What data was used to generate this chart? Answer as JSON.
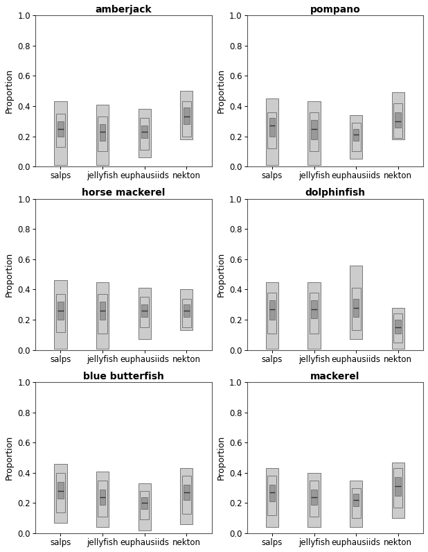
{
  "titles": [
    "amberjack",
    "pompano",
    "horse mackerel",
    "dolphinfish",
    "blue butterfish",
    "mackerel"
  ],
  "categories": [
    "salps",
    "jellyfish",
    "euphausiids",
    "nekton"
  ],
  "ylabel": "Proportion",
  "ylim": [
    0.0,
    1.0
  ],
  "yticks": [
    0.0,
    0.2,
    0.4,
    0.6,
    0.8,
    1.0
  ],
  "background_color": "#ffffff",
  "box_color_dark": "#999999",
  "box_color_light": "#cccccc",
  "title_fontweight": "bold",
  "plots": [
    {
      "title": "amberjack",
      "data": [
        {
          "median": 0.25,
          "ci50_lo": 0.2,
          "ci50_hi": 0.3,
          "ci75_lo": 0.13,
          "ci75_hi": 0.35,
          "ci95_lo": 0.01,
          "ci95_hi": 0.43
        },
        {
          "median": 0.23,
          "ci50_lo": 0.17,
          "ci50_hi": 0.28,
          "ci75_lo": 0.1,
          "ci75_hi": 0.33,
          "ci95_lo": 0.01,
          "ci95_hi": 0.41
        },
        {
          "median": 0.23,
          "ci50_lo": 0.19,
          "ci50_hi": 0.27,
          "ci75_lo": 0.11,
          "ci75_hi": 0.32,
          "ci95_lo": 0.06,
          "ci95_hi": 0.38
        },
        {
          "median": 0.33,
          "ci50_lo": 0.28,
          "ci50_hi": 0.39,
          "ci75_lo": 0.2,
          "ci75_hi": 0.43,
          "ci95_lo": 0.18,
          "ci95_hi": 0.5
        }
      ]
    },
    {
      "title": "pompano",
      "data": [
        {
          "median": 0.27,
          "ci50_lo": 0.2,
          "ci50_hi": 0.32,
          "ci75_lo": 0.12,
          "ci75_hi": 0.36,
          "ci95_lo": 0.01,
          "ci95_hi": 0.45
        },
        {
          "median": 0.25,
          "ci50_lo": 0.18,
          "ci50_hi": 0.31,
          "ci75_lo": 0.1,
          "ci75_hi": 0.36,
          "ci95_lo": 0.01,
          "ci95_hi": 0.43
        },
        {
          "median": 0.21,
          "ci50_lo": 0.17,
          "ci50_hi": 0.25,
          "ci75_lo": 0.1,
          "ci75_hi": 0.29,
          "ci95_lo": 0.05,
          "ci95_hi": 0.34
        },
        {
          "median": 0.3,
          "ci50_lo": 0.26,
          "ci50_hi": 0.36,
          "ci75_lo": 0.19,
          "ci75_hi": 0.42,
          "ci95_lo": 0.18,
          "ci95_hi": 0.49
        }
      ]
    },
    {
      "title": "horse mackerel",
      "data": [
        {
          "median": 0.26,
          "ci50_lo": 0.2,
          "ci50_hi": 0.32,
          "ci75_lo": 0.12,
          "ci75_hi": 0.37,
          "ci95_lo": 0.01,
          "ci95_hi": 0.46
        },
        {
          "median": 0.26,
          "ci50_lo": 0.2,
          "ci50_hi": 0.32,
          "ci75_lo": 0.11,
          "ci75_hi": 0.37,
          "ci95_lo": 0.01,
          "ci95_hi": 0.45
        },
        {
          "median": 0.26,
          "ci50_lo": 0.22,
          "ci50_hi": 0.3,
          "ci75_lo": 0.15,
          "ci75_hi": 0.35,
          "ci95_lo": 0.07,
          "ci95_hi": 0.41
        },
        {
          "median": 0.26,
          "ci50_lo": 0.22,
          "ci50_hi": 0.3,
          "ci75_lo": 0.15,
          "ci75_hi": 0.34,
          "ci95_lo": 0.13,
          "ci95_hi": 0.4
        }
      ]
    },
    {
      "title": "dolphinfish",
      "data": [
        {
          "median": 0.27,
          "ci50_lo": 0.2,
          "ci50_hi": 0.33,
          "ci75_lo": 0.11,
          "ci75_hi": 0.38,
          "ci95_lo": 0.01,
          "ci95_hi": 0.45
        },
        {
          "median": 0.27,
          "ci50_lo": 0.21,
          "ci50_hi": 0.33,
          "ci75_lo": 0.11,
          "ci75_hi": 0.38,
          "ci95_lo": 0.01,
          "ci95_hi": 0.45
        },
        {
          "median": 0.28,
          "ci50_lo": 0.22,
          "ci50_hi": 0.34,
          "ci75_lo": 0.13,
          "ci75_hi": 0.41,
          "ci95_lo": 0.07,
          "ci95_hi": 0.56
        },
        {
          "median": 0.15,
          "ci50_lo": 0.11,
          "ci50_hi": 0.2,
          "ci75_lo": 0.05,
          "ci75_hi": 0.24,
          "ci95_lo": 0.01,
          "ci95_hi": 0.28
        }
      ]
    },
    {
      "title": "blue butterfish",
      "data": [
        {
          "median": 0.28,
          "ci50_lo": 0.23,
          "ci50_hi": 0.34,
          "ci75_lo": 0.14,
          "ci75_hi": 0.4,
          "ci95_lo": 0.07,
          "ci95_hi": 0.46
        },
        {
          "median": 0.24,
          "ci50_lo": 0.19,
          "ci50_hi": 0.29,
          "ci75_lo": 0.11,
          "ci75_hi": 0.35,
          "ci95_lo": 0.04,
          "ci95_hi": 0.41
        },
        {
          "median": 0.2,
          "ci50_lo": 0.16,
          "ci50_hi": 0.24,
          "ci75_lo": 0.09,
          "ci75_hi": 0.28,
          "ci95_lo": 0.02,
          "ci95_hi": 0.33
        },
        {
          "median": 0.27,
          "ci50_lo": 0.22,
          "ci50_hi": 0.32,
          "ci75_lo": 0.13,
          "ci75_hi": 0.38,
          "ci95_lo": 0.06,
          "ci95_hi": 0.43
        }
      ]
    },
    {
      "title": "mackerel",
      "data": [
        {
          "median": 0.27,
          "ci50_lo": 0.21,
          "ci50_hi": 0.32,
          "ci75_lo": 0.12,
          "ci75_hi": 0.38,
          "ci95_lo": 0.04,
          "ci95_hi": 0.43
        },
        {
          "median": 0.24,
          "ci50_lo": 0.19,
          "ci50_hi": 0.29,
          "ci75_lo": 0.11,
          "ci75_hi": 0.35,
          "ci95_lo": 0.04,
          "ci95_hi": 0.4
        },
        {
          "median": 0.22,
          "ci50_lo": 0.18,
          "ci50_hi": 0.26,
          "ci75_lo": 0.1,
          "ci75_hi": 0.3,
          "ci95_lo": 0.04,
          "ci95_hi": 0.35
        },
        {
          "median": 0.31,
          "ci50_lo": 0.25,
          "ci50_hi": 0.37,
          "ci75_lo": 0.17,
          "ci75_hi": 0.43,
          "ci95_lo": 0.1,
          "ci95_hi": 0.47
        }
      ]
    }
  ]
}
